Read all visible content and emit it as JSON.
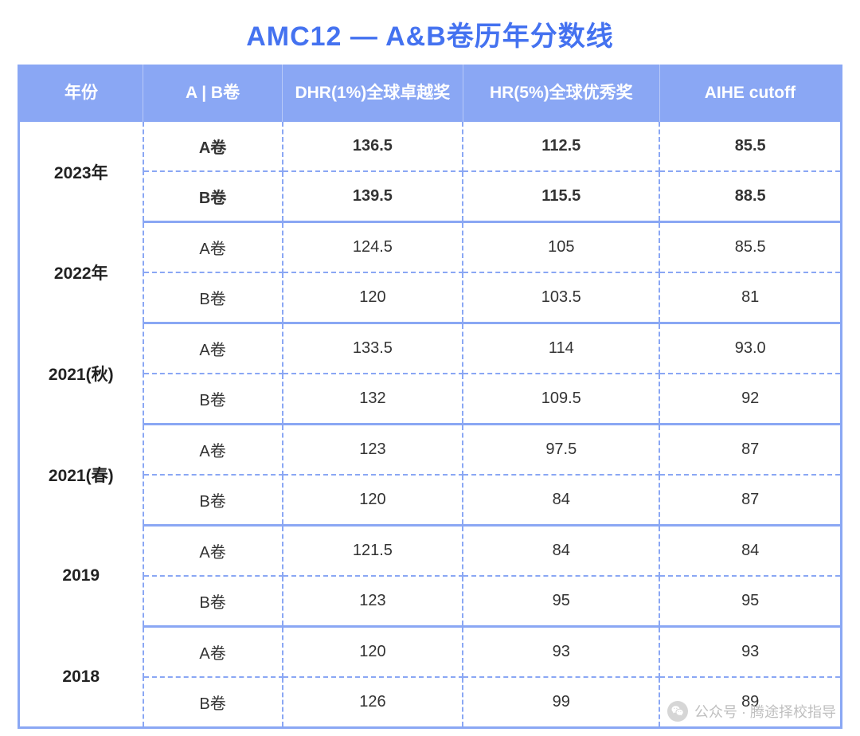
{
  "title": "AMC12 — A&B卷历年分数线",
  "colors": {
    "title_color": "#4472f0",
    "header_bg": "#8aa7f4",
    "header_text": "#ffffff",
    "border_color": "#8aa7f4",
    "text_color": "#333333",
    "background": "#ffffff",
    "watermark_color": "#b5b5b5"
  },
  "table": {
    "type": "table",
    "column_widths_pct": [
      15,
      17,
      22,
      24,
      22
    ],
    "columns": [
      "年份",
      "A | B卷",
      "DHR(1%)全球卓越奖",
      "HR(5%)全球优秀奖",
      "AIHE cutoff"
    ],
    "header_fontsize": 21,
    "cell_fontsize": 20,
    "groups": [
      {
        "year": "2023年",
        "bold": true,
        "rows": [
          {
            "exam": "A卷",
            "dhr": "136.5",
            "hr": "112.5",
            "aihe": "85.5"
          },
          {
            "exam": "B卷",
            "dhr": "139.5",
            "hr": "115.5",
            "aihe": "88.5"
          }
        ]
      },
      {
        "year": "2022年",
        "bold": false,
        "rows": [
          {
            "exam": "A卷",
            "dhr": "124.5",
            "hr": "105",
            "aihe": "85.5"
          },
          {
            "exam": "B卷",
            "dhr": "120",
            "hr": "103.5",
            "aihe": "81"
          }
        ]
      },
      {
        "year": "2021(秋)",
        "bold": false,
        "rows": [
          {
            "exam": "A卷",
            "dhr": "133.5",
            "hr": "114",
            "aihe": "93.0"
          },
          {
            "exam": "B卷",
            "dhr": "132",
            "hr": "109.5",
            "aihe": "92"
          }
        ]
      },
      {
        "year": "2021(春)",
        "bold": false,
        "rows": [
          {
            "exam": "A卷",
            "dhr": "123",
            "hr": "97.5",
            "aihe": "87"
          },
          {
            "exam": "B卷",
            "dhr": "120",
            "hr": "84",
            "aihe": "87"
          }
        ]
      },
      {
        "year": "2019",
        "bold": false,
        "rows": [
          {
            "exam": "A卷",
            "dhr": "121.5",
            "hr": "84",
            "aihe": "84"
          },
          {
            "exam": "B卷",
            "dhr": "123",
            "hr": "95",
            "aihe": "95"
          }
        ]
      },
      {
        "year": "2018",
        "bold": false,
        "rows": [
          {
            "exam": "A卷",
            "dhr": "120",
            "hr": "93",
            "aihe": "93"
          },
          {
            "exam": "B卷",
            "dhr": "126",
            "hr": "99",
            "aihe": "89"
          }
        ]
      }
    ]
  },
  "watermark": {
    "icon": "wechat-icon",
    "text": "公众号 · 腾途择校指导"
  }
}
